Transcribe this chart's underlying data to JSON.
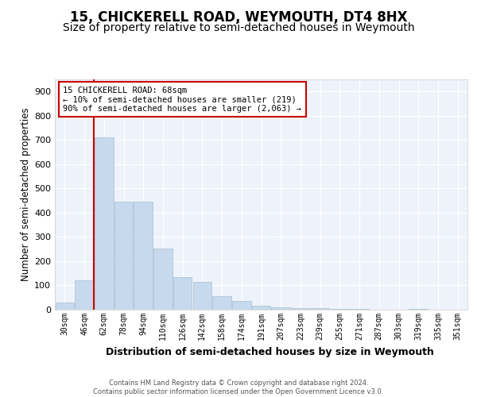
{
  "title1": "15, CHICKERELL ROAD, WEYMOUTH, DT4 8HX",
  "title2": "Size of property relative to semi-detached houses in Weymouth",
  "xlabel": "Distribution of semi-detached houses by size in Weymouth",
  "ylabel": "Number of semi-detached properties",
  "categories": [
    "30sqm",
    "46sqm",
    "62sqm",
    "78sqm",
    "94sqm",
    "110sqm",
    "126sqm",
    "142sqm",
    "158sqm",
    "174sqm",
    "191sqm",
    "207sqm",
    "223sqm",
    "239sqm",
    "255sqm",
    "271sqm",
    "287sqm",
    "303sqm",
    "319sqm",
    "335sqm",
    "351sqm"
  ],
  "values": [
    30,
    120,
    710,
    447,
    447,
    252,
    135,
    115,
    55,
    35,
    18,
    10,
    5,
    5,
    3,
    2,
    1,
    1,
    2,
    1,
    1
  ],
  "bar_color": "#c6d9ed",
  "bar_edge_color": "#aabfcf",
  "vline_color": "#cc0000",
  "vline_pos": 1.5,
  "annotation_text1": "15 CHICKERELL ROAD: 68sqm",
  "annotation_text2": "← 10% of semi-detached houses are smaller (219)",
  "annotation_text3": "90% of semi-detached houses are larger (2,063) →",
  "box_color": "#cc0000",
  "ylim": [
    0,
    950
  ],
  "yticks": [
    0,
    100,
    200,
    300,
    400,
    500,
    600,
    700,
    800,
    900
  ],
  "footnote": "Contains HM Land Registry data © Crown copyright and database right 2024.\nContains public sector information licensed under the Open Government Licence v3.0.",
  "bg_color": "#eef3fb",
  "title1_fontsize": 12,
  "title2_fontsize": 10,
  "xlabel_fontsize": 9,
  "ylabel_fontsize": 8.5
}
